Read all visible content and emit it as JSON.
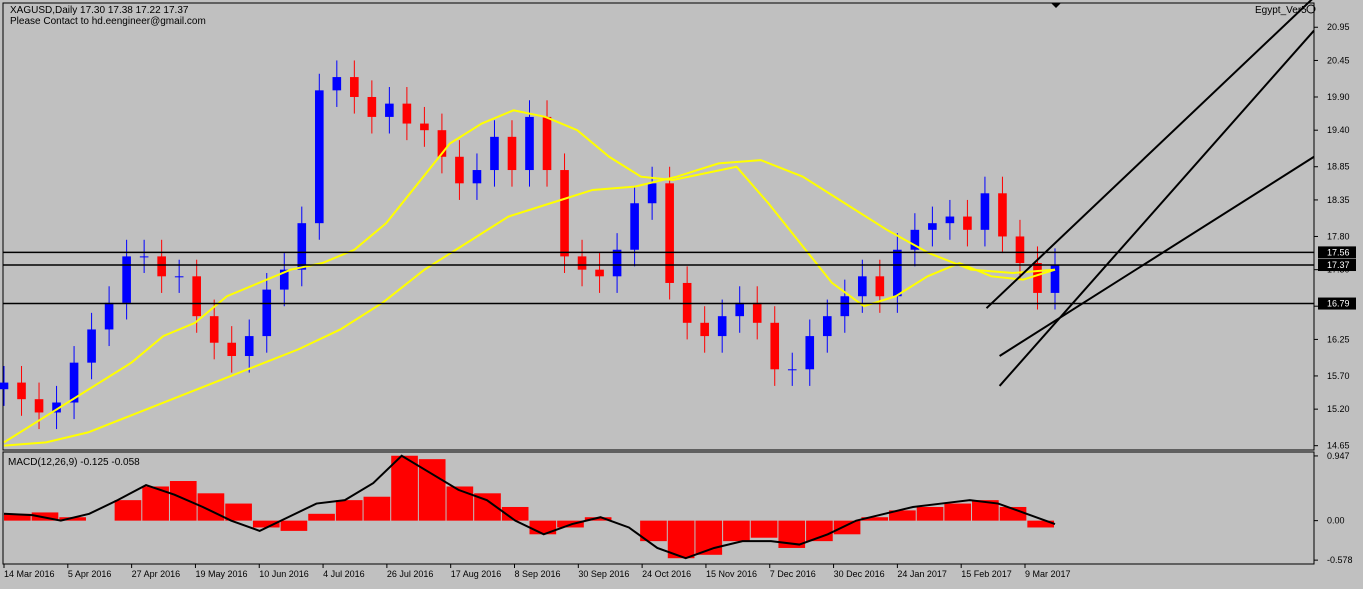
{
  "header": {
    "symbol_line": "XAGUSD,Daily  17.30 17.38 17.22 17.37",
    "contact_line": "Please Contact to hd.eengineer@gmail.com",
    "indicator_name": "Egypt_Ver5"
  },
  "colors": {
    "background": "#c0c0c0",
    "bull_candle": "#0000ff",
    "bear_candle": "#ff0000",
    "moving_average": "#ffff00",
    "trend_lines": "#000000",
    "macd_histogram": "#ff0000",
    "macd_signal": "#000000",
    "price_tag": "#000000"
  },
  "chart_data": [
    {
      "type": "candlestick",
      "title": "XAGUSD,Daily",
      "x_labels": [
        "14 Mar 2016",
        "5 Apr 2016",
        "27 Apr 2016",
        "19 May 2016",
        "10 Jun 2016",
        "4 Jul 2016",
        "26 Jul 2016",
        "17 Aug 2016",
        "8 Sep 2016",
        "30 Sep 2016",
        "24 Oct 2016",
        "15 Nov 2016",
        "7 Dec 2016",
        "30 Dec 2016",
        "24 Jan 2017",
        "15 Feb 2017",
        "9 Mar 2017"
      ],
      "y_ticks": [
        20.95,
        20.45,
        19.9,
        19.4,
        18.85,
        18.35,
        17.8,
        17.3,
        16.75,
        16.25,
        15.7,
        15.2,
        14.65
      ],
      "ylim": [
        14.6,
        21.3
      ],
      "close_series": [
        15.6,
        15.35,
        15.15,
        15.3,
        15.9,
        16.4,
        16.8,
        17.5,
        17.5,
        17.2,
        17.2,
        16.6,
        16.2,
        16.0,
        16.3,
        17.0,
        17.3,
        18.0,
        20.0,
        20.2,
        19.9,
        19.6,
        19.8,
        19.5,
        19.4,
        19.0,
        18.6,
        18.8,
        19.3,
        18.8,
        19.6,
        18.8,
        17.5,
        17.3,
        17.2,
        17.6,
        18.3,
        18.6,
        17.1,
        16.5,
        16.3,
        16.6,
        16.8,
        16.5,
        15.8,
        15.8,
        16.3,
        16.6,
        16.9,
        17.2,
        16.9,
        17.6,
        17.9,
        18.0,
        18.1,
        17.9,
        18.45,
        17.8,
        17.4,
        16.95,
        17.37
      ],
      "moving_averages": [
        {
          "values": [
            14.7,
            15.0,
            15.3,
            15.6,
            15.9,
            16.3,
            16.5,
            16.9,
            17.1,
            17.3,
            17.4,
            17.6,
            18.0,
            18.6,
            19.2,
            19.5,
            19.7,
            19.6,
            19.4,
            19.0,
            18.7,
            18.65,
            18.75,
            18.85,
            18.3,
            17.7,
            17.1,
            16.75,
            16.9,
            17.2,
            17.4,
            17.2,
            17.15,
            17.3
          ],
          "from": 0,
          "to": 60
        },
        {
          "values": [
            14.65,
            14.7,
            14.85,
            15.1,
            15.35,
            15.6,
            15.85,
            16.1,
            16.4,
            16.8,
            17.3,
            17.7,
            18.1,
            18.3,
            18.5,
            18.55,
            18.7,
            18.9,
            18.95,
            18.7,
            18.3,
            17.9,
            17.55,
            17.3,
            17.25,
            17.3
          ],
          "from": 0,
          "to": 60
        }
      ],
      "horizontal_levels": [
        {
          "label": "17.56",
          "value": 17.56
        },
        {
          "label": "17.37",
          "value": 17.37
        },
        {
          "label": "16.79",
          "value": 16.79
        }
      ],
      "trend_channel": {
        "upper": {
          "from": [
            0.75,
            16.72
          ],
          "to": [
            1.0,
            21.4
          ]
        },
        "middle": {
          "from": [
            0.76,
            15.55
          ],
          "to": [
            1.0,
            20.9
          ]
        },
        "lower": {
          "from": [
            0.76,
            16.0
          ],
          "to": [
            1.0,
            19.0
          ]
        }
      }
    },
    {
      "type": "macd",
      "title": "MACD(12,26,9) -0.125 -0.058",
      "y_ticks": [
        0.947,
        0.0,
        -0.578
      ],
      "ylim": [
        -0.62,
        0.99
      ],
      "histogram": [
        0.1,
        0.12,
        0.05,
        0.0,
        0.3,
        0.5,
        0.58,
        0.4,
        0.25,
        -0.1,
        -0.15,
        0.1,
        0.3,
        0.35,
        0.95,
        0.9,
        0.5,
        0.4,
        0.2,
        -0.2,
        -0.1,
        0.05,
        0.0,
        -0.3,
        -0.55,
        -0.5,
        -0.3,
        -0.25,
        -0.4,
        -0.3,
        -0.2,
        0.05,
        0.15,
        0.2,
        0.25,
        0.3,
        0.2,
        -0.1
      ],
      "signal": [
        0.1,
        0.08,
        0.0,
        0.1,
        0.3,
        0.52,
        0.38,
        0.2,
        0.0,
        -0.15,
        0.05,
        0.25,
        0.3,
        0.55,
        0.95,
        0.7,
        0.45,
        0.3,
        0.0,
        -0.2,
        -0.05,
        0.05,
        -0.1,
        -0.4,
        -0.55,
        -0.4,
        -0.3,
        -0.3,
        -0.35,
        -0.2,
        0.0,
        0.1,
        0.2,
        0.25,
        0.3,
        0.25,
        0.1,
        -0.05
      ]
    }
  ]
}
